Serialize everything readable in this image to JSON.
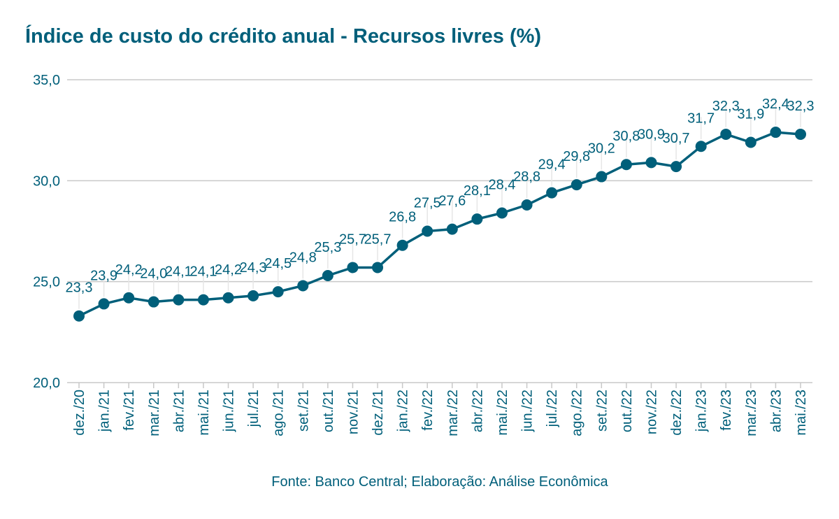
{
  "title": "Índice de custo do crédito anual - Recursos livres (%)",
  "source": "Fonte: Banco Central; Elaboração: Análise Econômica",
  "colors": {
    "series": "#005f7a",
    "grid": "#c8c8c8",
    "text": "#005f7a"
  },
  "chart_data": {
    "type": "line",
    "title": "Índice de custo do crédito anual - Recursos livres (%)",
    "xlabel": "",
    "ylabel": "",
    "ylim": [
      20,
      35
    ],
    "yticks": [
      "20,0",
      "25,0",
      "30,0",
      "35,0"
    ],
    "yticks_values": [
      20,
      25,
      30,
      35
    ],
    "grid": true,
    "legend": "none",
    "categories": [
      "dez./20",
      "jan./21",
      "fev./21",
      "mar./21",
      "abr./21",
      "mai./21",
      "jun./21",
      "jul./21",
      "ago./21",
      "set./21",
      "out./21",
      "nov./21",
      "dez./21",
      "jan./22",
      "fev./22",
      "mar./22",
      "abr./22",
      "mai./22",
      "jun./22",
      "jul./22",
      "ago./22",
      "set./22",
      "out./22",
      "nov./22",
      "dez./22",
      "jan./23",
      "fev./23",
      "mar./23",
      "abr./23",
      "mai./23"
    ],
    "values": [
      23.3,
      23.9,
      24.2,
      24.0,
      24.1,
      24.1,
      24.2,
      24.3,
      24.5,
      24.8,
      25.3,
      25.7,
      25.7,
      26.8,
      27.5,
      27.6,
      28.1,
      28.4,
      28.8,
      29.4,
      29.8,
      30.2,
      30.8,
      30.9,
      30.7,
      31.7,
      32.3,
      31.9,
      32.4,
      32.3
    ],
    "data_labels": [
      "23,3",
      "23,9",
      "24,2",
      "24,0",
      "24,1",
      "24,1",
      "24,2",
      "24,3",
      "24,5",
      "24,8",
      "25,3",
      "25,7",
      "25,7",
      "26,8",
      "27,5",
      "27,6",
      "28,1",
      "28,4",
      "28,8",
      "29,4",
      "29,8",
      "30,2",
      "30,8",
      "30,9",
      "30,7",
      "31,7",
      "32,3",
      "31,9",
      "32,4",
      "32,3"
    ]
  }
}
